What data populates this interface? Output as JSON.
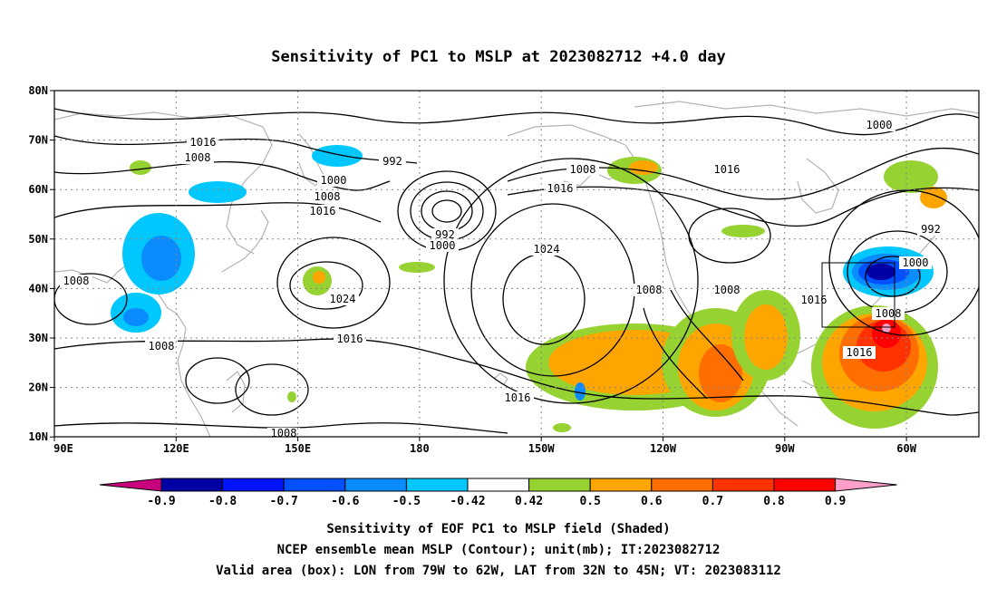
{
  "title": "Sensitivity of PC1 to MSLP at 2023082712 +4.0 day",
  "map": {
    "lat_ticks": [
      "80N",
      "70N",
      "60N",
      "50N",
      "40N",
      "30N",
      "20N",
      "10N"
    ],
    "lon_ticks": [
      "90E",
      "120E",
      "150E",
      "180",
      "150W",
      "120W",
      "90W",
      "60W"
    ],
    "grid": true,
    "land_color": "#b4b4b4",
    "valid_box": "LON 79W-62W, LAT 32N-45N"
  },
  "contour_labels": [
    "1016",
    "1008",
    "1000",
    "1008",
    "1016",
    "992",
    "992",
    "1000",
    "1024",
    "1008",
    "1008",
    "1016",
    "1008",
    "1008",
    "1016",
    "1024",
    "1016",
    "1008",
    "1008",
    "1016",
    "1000",
    "992",
    "1000",
    "1016",
    "1008",
    "1016",
    "1016"
  ],
  "colorbar": {
    "labels": [
      "-0.9",
      "-0.8",
      "-0.7",
      "-0.6",
      "-0.5",
      "-0.42",
      "0.42",
      "0.5",
      "0.6",
      "0.7",
      "0.8",
      "0.9"
    ],
    "colors": [
      "#0000a5",
      "#0014ff",
      "#0050ff",
      "#0a8cff",
      "#00c8ff",
      "#ffffff",
      "#96d232",
      "#ffa500",
      "#ff6e00",
      "#ff3200",
      "#ff0000"
    ],
    "low_color": "#c8007d",
    "high_color": "#ff9ec8"
  },
  "captions": [
    "Sensitivity of EOF PC1 to MSLP field (Shaded)",
    "NCEP ensemble mean MSLP (Contour); unit(mb); IT:2023082712",
    "Valid area (box): LON from 79W to 62W, LAT from 32N to 45N; VT: 2023083112"
  ]
}
